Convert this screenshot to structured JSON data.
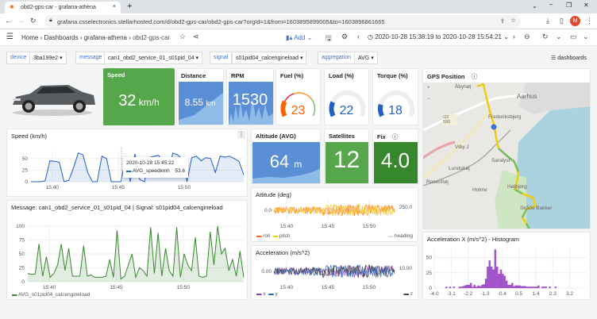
{
  "browser": {
    "tab_title": "obd2-gps-car - grafana-athena",
    "url": "grafana.csselectronics.stellarhosted.com/d/obd2-gps-car/obd2-gps-car?orgId=1&from=1603895899005&to=1603896861665",
    "profile_initial": "M"
  },
  "nav": {
    "breadcrumb": [
      "Home",
      "Dashboards",
      "grafana-athena",
      "obd2-gps-car"
    ],
    "add_label": "Add",
    "time_range": "2020-10-28 15:38:19 to 2020-10-28 15:54:21"
  },
  "variables": [
    {
      "label": "device",
      "value": "3ba199e2"
    },
    {
      "label": "message",
      "value": "can1_obd2_service_01_s01pid_04"
    },
    {
      "label": "signal",
      "value": "s01pid04_calcengineload"
    },
    {
      "label": "aggregation",
      "value": "AVG"
    }
  ],
  "dashboards_link": "dashboards",
  "stats": {
    "speed": {
      "title": "Speed",
      "value": "32",
      "unit": "km/h",
      "color": "#56a64b"
    },
    "distance": {
      "title": "Distance",
      "value": "8.55",
      "unit": "km",
      "color": "#5a8fd6"
    },
    "rpm": {
      "title": "RPM",
      "value": "1530",
      "color": "#5a8fd6"
    },
    "fuel": {
      "title": "Fuel (%)",
      "value": 23,
      "color": "#fa6400"
    },
    "load": {
      "title": "Load (%)",
      "value": 22,
      "color": "#1f60c4"
    },
    "torque": {
      "title": "Torque (%)",
      "value": 18,
      "color": "#1f60c4"
    },
    "altitude": {
      "title": "Altitude (AVG)",
      "value": "64",
      "unit": "m",
      "color": "#5a8fd6"
    },
    "satellites": {
      "title": "Satellites",
      "value": "12",
      "color": "#56a64b"
    },
    "fix": {
      "title": "Fix",
      "value": "4.0",
      "color": "#37872d"
    }
  },
  "gps": {
    "title": "GPS Position",
    "places": [
      "Åbyhøj",
      "Aarhus",
      "Frederiksbjerg",
      "Viby J",
      "Lundshøj",
      "Saralyst",
      "Rosenhøj",
      "Holme",
      "Højbjerg",
      "Skåde Bakker"
    ],
    "road_badge": "O2 180"
  },
  "chart_data": [
    {
      "type": "line",
      "title": "Speed (km/h)",
      "x_ticks": [
        "15:40",
        "15:45",
        "15:50"
      ],
      "y_ticks": [
        "0",
        "25",
        "50"
      ],
      "ylim": [
        0,
        65
      ],
      "series": [
        {
          "name": "AVG_speedkmh",
          "values": [
            0,
            0,
            0,
            2,
            45,
            44,
            42,
            0,
            3,
            30,
            62,
            58,
            20,
            0,
            0,
            55,
            50,
            0,
            0,
            0,
            48,
            0,
            60,
            5,
            0,
            52,
            55,
            57,
            40,
            20,
            62,
            58,
            50,
            0,
            52,
            55,
            45,
            52,
            50,
            20,
            55,
            53,
            55,
            50,
            44,
            15
          ]
        }
      ],
      "tooltip": {
        "time": "2020-10-28 15:45:22",
        "series": "AVG_speedkmh",
        "value": "53.6"
      }
    },
    {
      "type": "line",
      "title": "Message: can1_obd2_service_01_s01pid_04 | Signal: s01pid04_calcengineload",
      "x_ticks": [
        "15:40",
        "15:45",
        "15:50"
      ],
      "y_ticks": [
        "0",
        "25",
        "50",
        "75",
        "100"
      ],
      "ylim": [
        0,
        100
      ],
      "series": [
        {
          "name": "AVG_s01pid04_calcengineload",
          "values": [
            15,
            13,
            14,
            68,
            10,
            45,
            8,
            15,
            30,
            68,
            20,
            60,
            10,
            10,
            10,
            65,
            10,
            12,
            8,
            8,
            8,
            10,
            40,
            8,
            92,
            5,
            10,
            30,
            50,
            8,
            25,
            20,
            10,
            98,
            15,
            88,
            10,
            60,
            20,
            10,
            98,
            8,
            50,
            30,
            20,
            80,
            10,
            8,
            10,
            90,
            30,
            100,
            50,
            60,
            20,
            40,
            10,
            55,
            8
          ]
        }
      ]
    },
    {
      "type": "line",
      "title": "Attitude (deg)",
      "x_ticks": [
        "15:40",
        "15:45",
        "15:50"
      ],
      "y_ticks": [
        "0.0"
      ],
      "y2_ticks": [
        "250.0"
      ],
      "series": [
        {
          "name": "roll",
          "color": "#fa6400"
        },
        {
          "name": "pitch",
          "color": "#f2cc0c"
        },
        {
          "name": "heading",
          "color": "#ccccdc"
        }
      ]
    },
    {
      "type": "line",
      "title": "Acceleration (m/s^2)",
      "x_ticks": [
        "15:40",
        "15:45",
        "15:50"
      ],
      "y_ticks": [
        "0.00"
      ],
      "y2_ticks": [
        "10.00"
      ],
      "series": [
        {
          "name": "x",
          "color": "#8f3bb8"
        },
        {
          "name": "y",
          "color": "#1f60c4"
        },
        {
          "name": "z",
          "color": "#444444"
        }
      ]
    },
    {
      "type": "bar",
      "title": "Acceleration X (m/s^2) - Histogram",
      "x_ticks": [
        "-4.0",
        "-3.1",
        "-2.2",
        "-1.3",
        "-0.4",
        "0.5",
        "1.4",
        "2.3",
        "3.2"
      ],
      "y_ticks": [
        "0",
        "25",
        "50"
      ],
      "xlim": [
        -4.0,
        4.1
      ],
      "ylim": [
        0,
        65
      ],
      "bins_start": -3.4,
      "bin_width": 0.1,
      "values": [
        2,
        0,
        2,
        0,
        2,
        0,
        0,
        2,
        2,
        3,
        4,
        5,
        5,
        8,
        2,
        5,
        2,
        4,
        3,
        5,
        6,
        15,
        35,
        45,
        35,
        30,
        63,
        35,
        23,
        30,
        23,
        20,
        12,
        5,
        5,
        8,
        3,
        4,
        4,
        4,
        3,
        3,
        3,
        2,
        2,
        2,
        2,
        2,
        2,
        4,
        0,
        2,
        2,
        2,
        0,
        2,
        0,
        0,
        2,
        0
      ]
    }
  ]
}
